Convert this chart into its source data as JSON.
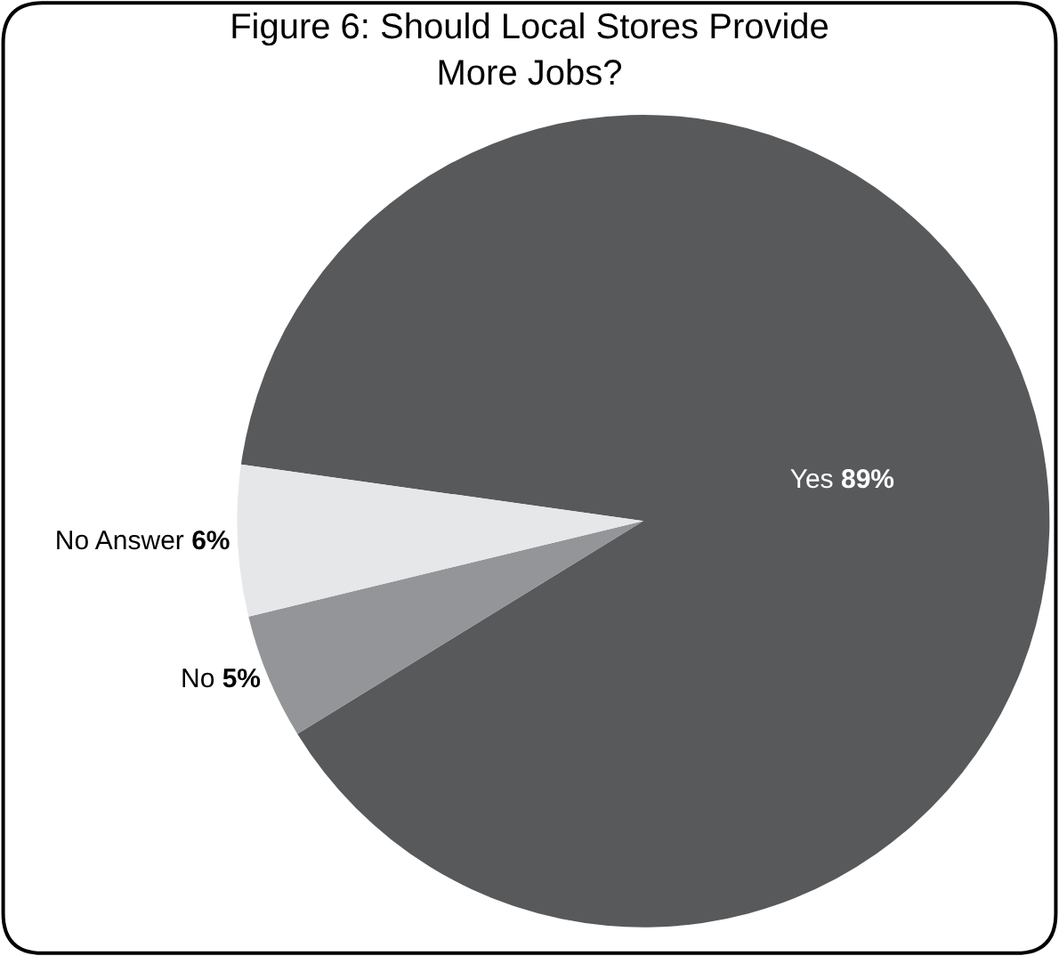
{
  "chart_data": {
    "type": "pie",
    "title": "Figure 6: Should Local Stores Provide\nMore Jobs?",
    "categories": [
      "Yes",
      "No",
      "No Answer"
    ],
    "values": [
      89,
      5,
      6
    ],
    "value_labels": [
      "89%",
      "5%",
      "6%"
    ],
    "colors": [
      "#58595b",
      "#939598",
      "#e6e7e8"
    ],
    "legend": false
  }
}
